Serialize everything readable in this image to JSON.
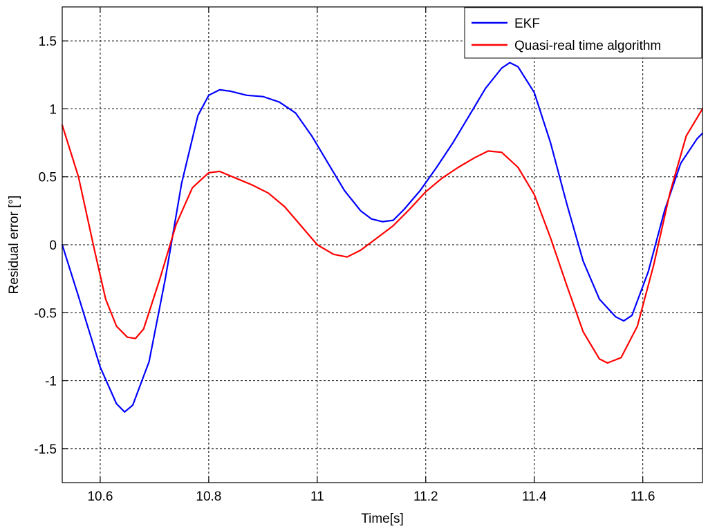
{
  "chart_data": {
    "type": "line",
    "xlabel": "Time[s]",
    "ylabel": "Residual error [°]",
    "xlim": [
      10.53,
      11.71
    ],
    "ylim": [
      -1.75,
      1.75
    ],
    "x_ticks": [
      10.6,
      10.8,
      11,
      11.2,
      11.4,
      11.6
    ],
    "x_tick_labels": [
      "10.6",
      "10.8",
      "11",
      "11.2",
      "11.4",
      "11.6"
    ],
    "y_ticks": [
      1.5,
      1,
      0.5,
      0,
      -0.5,
      -1,
      -1.5
    ],
    "y_tick_labels": [
      "1.5",
      "1",
      "0.5",
      "0",
      "-0.5",
      "-1",
      "-1.5"
    ],
    "grid": true,
    "legend_position": "top-right",
    "series": [
      {
        "name": "EKF",
        "color": "#0000ff",
        "x": [
          10.53,
          10.56,
          10.6,
          10.63,
          10.645,
          10.66,
          10.69,
          10.72,
          10.75,
          10.78,
          10.8,
          10.82,
          10.84,
          10.87,
          10.9,
          10.93,
          10.96,
          10.99,
          11.02,
          11.05,
          11.08,
          11.1,
          11.12,
          11.14,
          11.16,
          11.19,
          11.22,
          11.25,
          11.28,
          11.31,
          11.34,
          11.355,
          11.37,
          11.4,
          11.43,
          11.46,
          11.49,
          11.52,
          11.55,
          11.565,
          11.58,
          11.61,
          11.64,
          11.67,
          11.7,
          11.71
        ],
        "y": [
          0.0,
          -0.38,
          -0.9,
          -1.17,
          -1.23,
          -1.18,
          -0.86,
          -0.25,
          0.45,
          0.95,
          1.1,
          1.14,
          1.13,
          1.1,
          1.09,
          1.05,
          0.97,
          0.8,
          0.6,
          0.4,
          0.25,
          0.19,
          0.17,
          0.18,
          0.26,
          0.4,
          0.57,
          0.75,
          0.95,
          1.15,
          1.3,
          1.34,
          1.31,
          1.12,
          0.75,
          0.3,
          -0.12,
          -0.4,
          -0.53,
          -0.56,
          -0.52,
          -0.2,
          0.25,
          0.6,
          0.78,
          0.82
        ]
      },
      {
        "name": "Quasi-real time algorithm",
        "color": "#ff0000",
        "x": [
          10.53,
          10.56,
          10.59,
          10.61,
          10.63,
          10.65,
          10.665,
          10.68,
          10.71,
          10.74,
          10.77,
          10.8,
          10.82,
          10.85,
          10.88,
          10.91,
          10.94,
          10.97,
          11.0,
          11.03,
          11.055,
          11.08,
          11.11,
          11.14,
          11.17,
          11.2,
          11.23,
          11.26,
          11.29,
          11.315,
          11.34,
          11.37,
          11.4,
          11.43,
          11.46,
          11.49,
          11.52,
          11.535,
          11.56,
          11.59,
          11.62,
          11.65,
          11.68,
          11.71
        ],
        "y": [
          0.88,
          0.5,
          -0.05,
          -0.4,
          -0.6,
          -0.68,
          -0.69,
          -0.62,
          -0.25,
          0.15,
          0.42,
          0.53,
          0.54,
          0.49,
          0.44,
          0.38,
          0.28,
          0.14,
          0.0,
          -0.07,
          -0.09,
          -0.04,
          0.05,
          0.14,
          0.26,
          0.39,
          0.49,
          0.57,
          0.64,
          0.69,
          0.68,
          0.57,
          0.37,
          0.05,
          -0.3,
          -0.64,
          -0.84,
          -0.87,
          -0.83,
          -0.6,
          -0.15,
          0.38,
          0.8,
          1.0
        ]
      }
    ]
  }
}
